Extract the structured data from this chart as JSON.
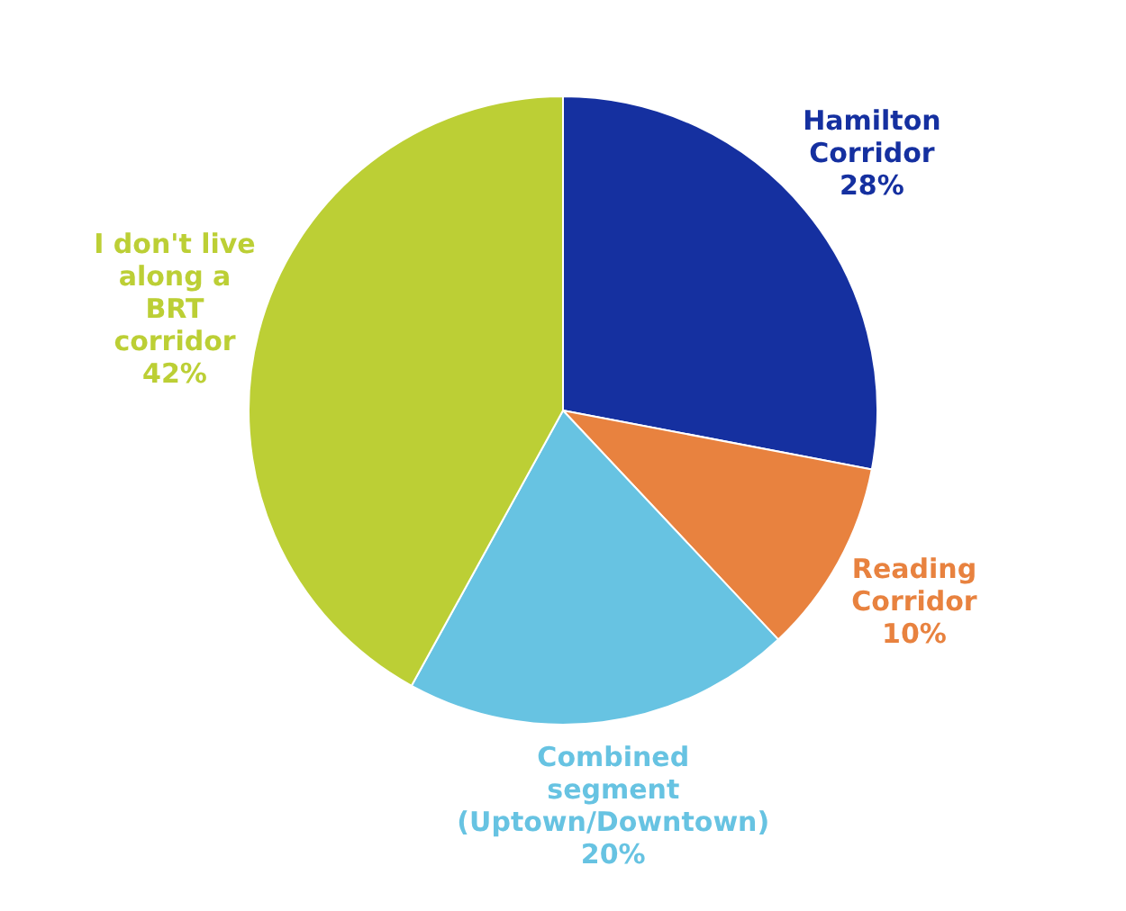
{
  "chart_data": {
    "type": "pie",
    "categories": [
      "Hamilton Corridor",
      "Reading Corridor",
      "Combined segment (Uptown/Downtown)",
      "I don't live along a BRT corridor"
    ],
    "values": [
      28,
      10,
      20,
      42
    ],
    "colors": [
      "#1530a0",
      "#e8823f",
      "#67c3e2",
      "#bccf35"
    ],
    "value_labels": [
      "28%",
      "10%",
      "20%",
      "42%"
    ],
    "legend": false
  }
}
